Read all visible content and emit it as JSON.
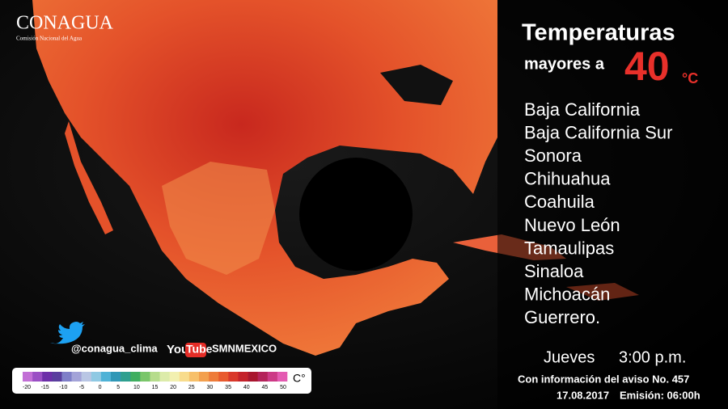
{
  "logo": {
    "name": "CONAGUA",
    "subtitle": "Comisión Nacional del Agua"
  },
  "heading": {
    "line1": "Temperaturas",
    "line2": "mayores a",
    "value": "40",
    "unit": "°C"
  },
  "states": [
    "Baja California",
    "Baja California Sur",
    "Sonora",
    "Chihuahua",
    "Coahuila",
    "Nuevo León",
    "Tamaulipas",
    "Sinaloa",
    "Michoacán",
    "Guerrero."
  ],
  "schedule": {
    "day": "Jueves",
    "time": "3:00 p.m."
  },
  "notice": "Con información del aviso No. 457",
  "date": "17.08.2017",
  "emission": "Emisión: 06:00h",
  "social": {
    "twitter": "@conagua_clima",
    "youtube_you": "You",
    "youtube_tube": "Tube",
    "youtube": "SMNMEXICO"
  },
  "legend": {
    "unit": "C°",
    "ticks": [
      -20,
      -15,
      -10,
      -5,
      0,
      5,
      10,
      15,
      20,
      25,
      30,
      35,
      40,
      45,
      50
    ],
    "colors": [
      "#c26fd6",
      "#9a4fc4",
      "#6c2fa8",
      "#5a3e9e",
      "#7f7fc8",
      "#a3a3d8",
      "#b9c6e4",
      "#8fc9e3",
      "#4fb2d6",
      "#2f97b6",
      "#2e9f8f",
      "#3fae5f",
      "#7ac66a",
      "#b6dc8c",
      "#dcebaa",
      "#f2f0b0",
      "#f8dc8c",
      "#f7c06a",
      "#f3a04e",
      "#ee7c3a",
      "#e85a2e",
      "#d9382a",
      "#c4222a",
      "#a8162e",
      "#b4235a",
      "#cc3a86",
      "#e45bb2"
    ]
  }
}
